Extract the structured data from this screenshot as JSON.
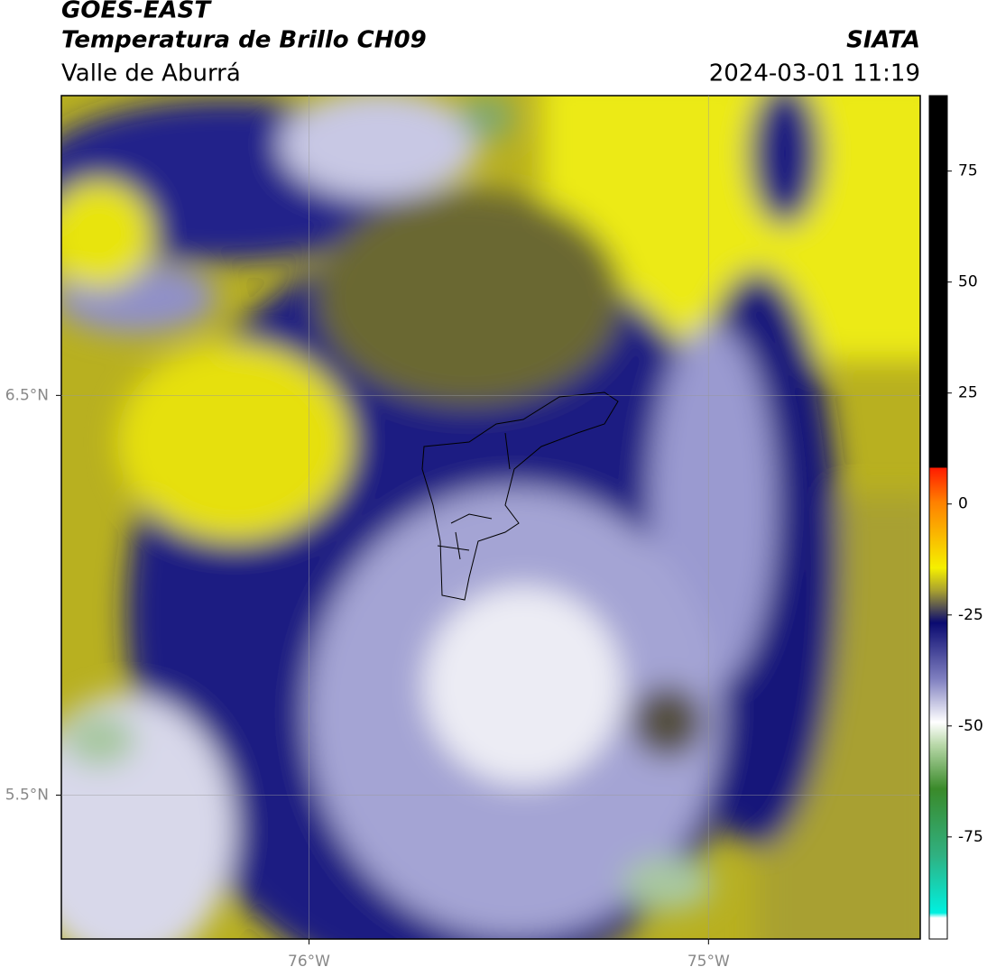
{
  "header": {
    "title": "GOES-EAST",
    "subtitle": "Temperatura de Brillo CH09",
    "region": "Valle de Aburrá",
    "source": "SIATA",
    "timestamp": "2024-03-01 11:19"
  },
  "map": {
    "lonlim": [
      -76.62,
      -74.47
    ],
    "latlim": [
      5.14,
      7.25
    ],
    "lon_ticks": [
      {
        "value": -76,
        "label": "76°W"
      },
      {
        "value": -75,
        "label": "75°W"
      }
    ],
    "lat_ticks": [
      {
        "value": 6.5,
        "label": "6.5°N"
      },
      {
        "value": 5.5,
        "label": "5.5°N"
      }
    ],
    "grid": true
  },
  "colorbar": {
    "lim": [
      -98,
      92
    ],
    "ticks": [
      75,
      50,
      25,
      0,
      -25,
      -50,
      -75
    ]
  }
}
